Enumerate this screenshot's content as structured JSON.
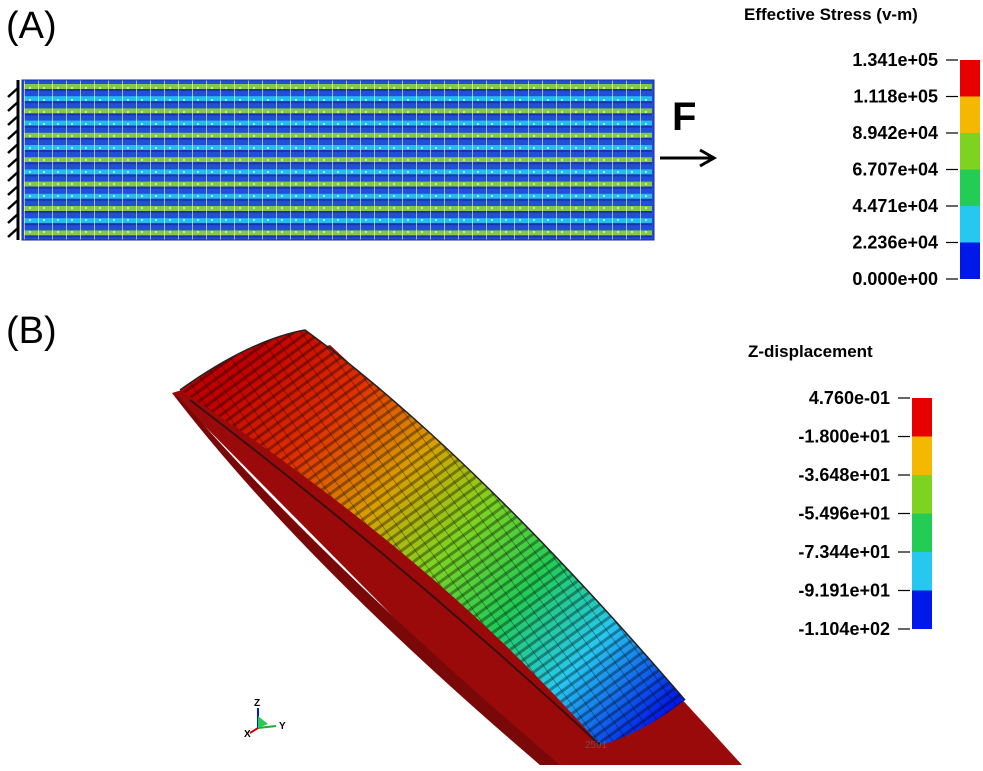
{
  "panel_a": {
    "label": "(A)",
    "force_label": "F",
    "legend": {
      "title": "Effective Stress (v-m)",
      "values": [
        "1.341e+05",
        "1.118e+05",
        "8.942e+04",
        "6.707e+04",
        "4.471e+04",
        "2.236e+04",
        "0.000e+00"
      ],
      "colors": [
        "#e80000",
        "#f5b800",
        "#7ed321",
        "#22cc55",
        "#27c8f0",
        "#0018e8"
      ]
    }
  },
  "panel_b": {
    "label": "(B)",
    "legend": {
      "title": "Z-displacement",
      "values": [
        "4.760e-01",
        "-1.800e+01",
        "-3.648e+01",
        "-5.496e+01",
        "-7.344e+01",
        "-9.191e+01",
        "-1.104e+02"
      ],
      "colors": [
        "#e80000",
        "#f5b800",
        "#7ed321",
        "#22cc55",
        "#27c8f0",
        "#0018e8"
      ]
    },
    "triad": {
      "z": "Z",
      "y": "Y",
      "x": "X"
    },
    "watermark": "2591"
  }
}
